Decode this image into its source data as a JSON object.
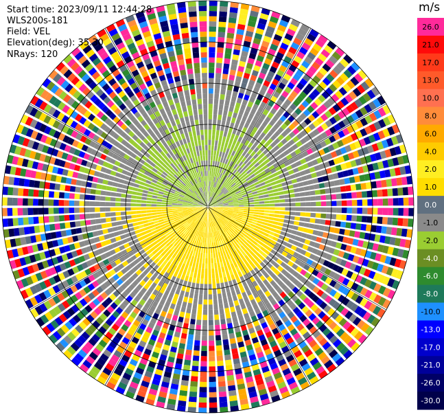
{
  "info": {
    "start_time": "Start time: 2023/09/11 12:44:28",
    "site": "WLS200s-181",
    "field": "Field: VEL",
    "elevation": "Elevation(deg): 35.30",
    "nrays": "NRays: 120"
  },
  "colorbar": {
    "unit": "m/s",
    "levels": [
      {
        "label": "26.0",
        "color": "#ff2a9a"
      },
      {
        "label": "21.0",
        "color": "#ff0a0a"
      },
      {
        "label": "17.0",
        "color": "#ff3a1a"
      },
      {
        "label": "13.0",
        "color": "#ff5a2a"
      },
      {
        "label": "10.0",
        "color": "#ff7050"
      },
      {
        "label": "8.0",
        "color": "#ff8c3a"
      },
      {
        "label": "6.0",
        "color": "#ffaa00"
      },
      {
        "label": "4.0",
        "color": "#ffcc00"
      },
      {
        "label": "2.0",
        "color": "#ffee22"
      },
      {
        "label": "1.0",
        "color": "#ffdd00"
      },
      {
        "label": "0.0",
        "color": "#607080"
      },
      {
        "label": "-1.0",
        "color": "#8a8a8a"
      },
      {
        "label": "-2.0",
        "color": "#9acd32"
      },
      {
        "label": "-4.0",
        "color": "#6b8e23"
      },
      {
        "label": "-6.0",
        "color": "#2e8b2e"
      },
      {
        "label": "-8.0",
        "color": "#1e7a5a"
      },
      {
        "label": "-10.0",
        "color": "#1e90ff"
      },
      {
        "label": "-13.0",
        "color": "#0000ff"
      },
      {
        "label": "-17.0",
        "color": "#0000cc"
      },
      {
        "label": "-21.0",
        "color": "#000099"
      },
      {
        "label": "-26.0",
        "color": "#000066"
      },
      {
        "label": "-30.0",
        "color": "#00004a"
      }
    ]
  },
  "chart_data": {
    "type": "heatmap",
    "projection": "polar PPI",
    "field": "VEL",
    "nrays": 120,
    "range_rings_km": [
      1,
      2,
      3,
      4,
      5
    ],
    "ring_label": "",
    "grid": true,
    "legend_position": "right"
  }
}
